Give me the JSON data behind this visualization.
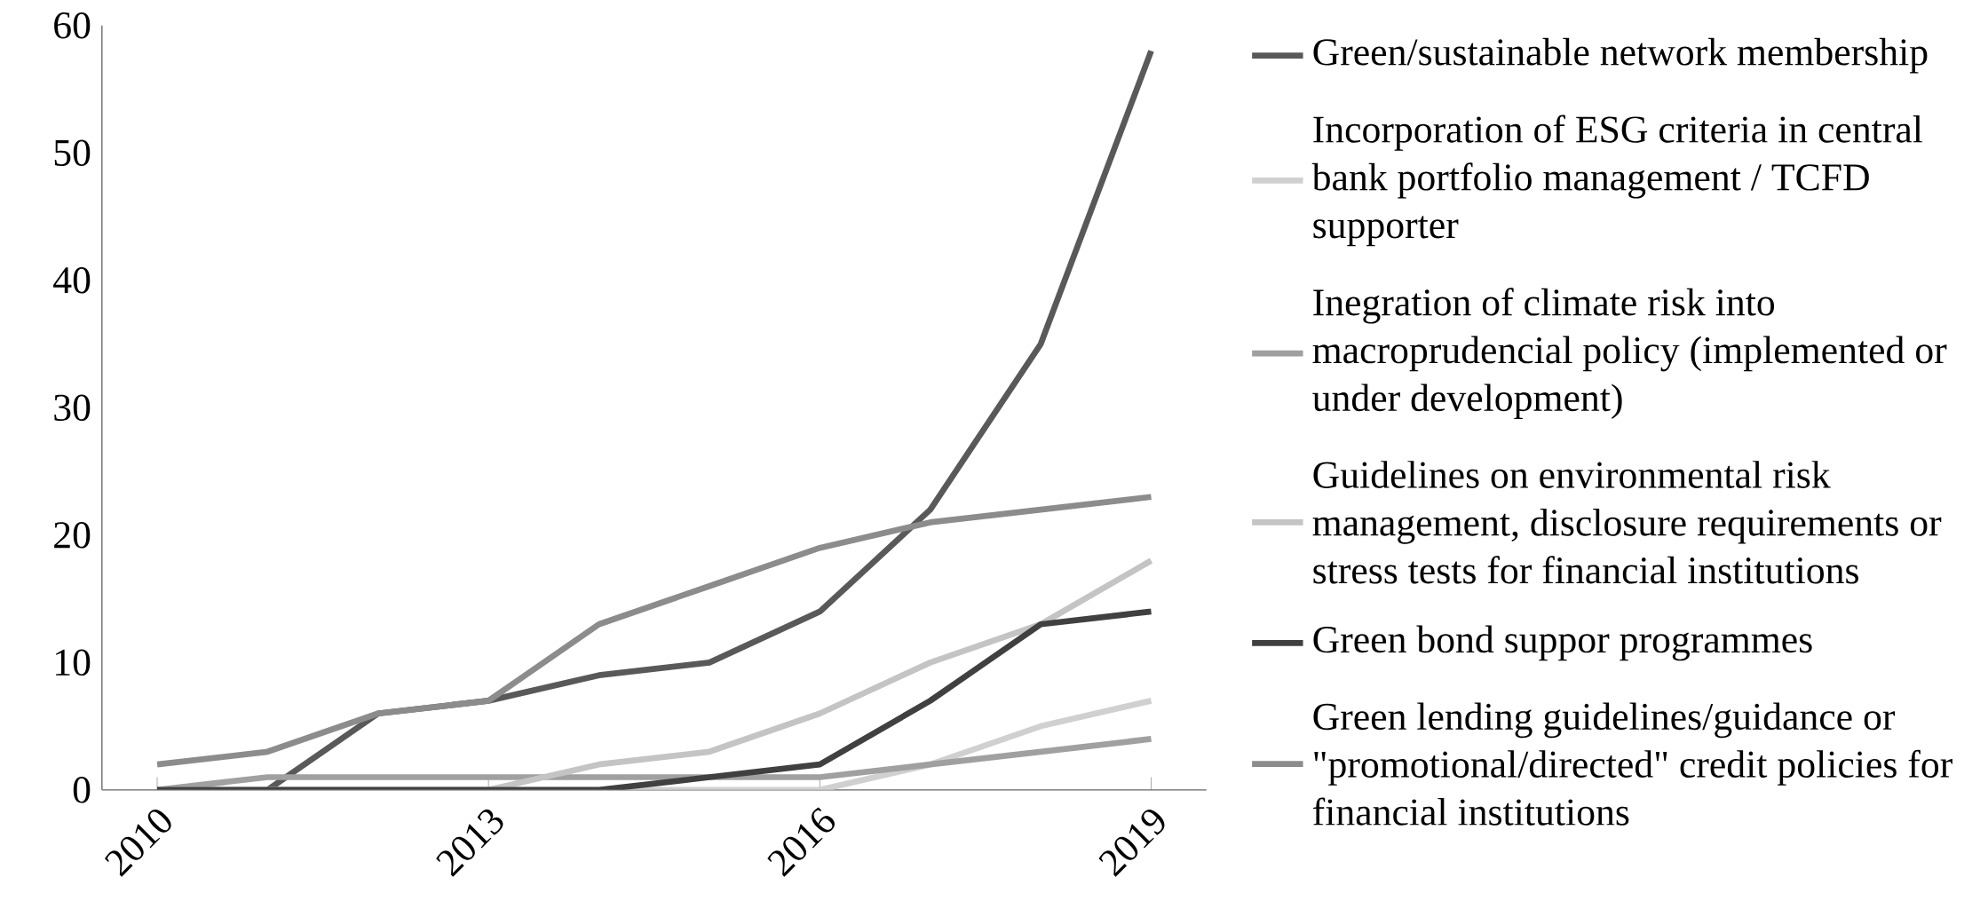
{
  "chart_data": {
    "type": "line",
    "x": [
      2010,
      2011,
      2012,
      2013,
      2014,
      2015,
      2016,
      2017,
      2018,
      2019
    ],
    "xlim": [
      2009.5,
      2019.5
    ],
    "xticks": [
      2010,
      2013,
      2016,
      2019
    ],
    "ylim": [
      0,
      60
    ],
    "yticks": [
      0,
      10,
      20,
      30,
      40,
      50,
      60
    ],
    "legend": "right",
    "marker": "none",
    "line_style": "solid",
    "grid": false,
    "series": [
      {
        "name": "Green/sustainable network membership",
        "color": "#595959",
        "values": [
          null,
          0,
          6,
          7,
          9,
          10,
          14,
          22,
          35,
          58
        ]
      },
      {
        "name": "Incorporation of ESG criteria in central bank portfolio management / TCFD supporter",
        "color": "#d0d0d0",
        "values": [
          0,
          0,
          0,
          0,
          0,
          0,
          0,
          2,
          5,
          7
        ]
      },
      {
        "name": "Inegration of climate risk into macroprudencial policy (implemented or under development)",
        "color": "#a0a0a0",
        "values": [
          0,
          1,
          1,
          1,
          1,
          1,
          1,
          2,
          3,
          4
        ]
      },
      {
        "name": "Guidelines on environmental risk management, disclosure requirements or stress tests for financial institutions",
        "color": "#c4c4c4",
        "values": [
          0,
          0,
          0,
          0,
          2,
          3,
          6,
          10,
          13,
          18
        ]
      },
      {
        "name": "Green bond suppor programmes",
        "color": "#404040",
        "values": [
          0,
          0,
          0,
          0,
          0,
          1,
          2,
          7,
          13,
          14
        ]
      },
      {
        "name": "Green lending guidelines/guidance or \"promotional/directed\" credit policies for financial institutions",
        "color": "#8c8c8c",
        "values": [
          2,
          3,
          6,
          7,
          13,
          16,
          19,
          21,
          22,
          23
        ]
      }
    ]
  }
}
